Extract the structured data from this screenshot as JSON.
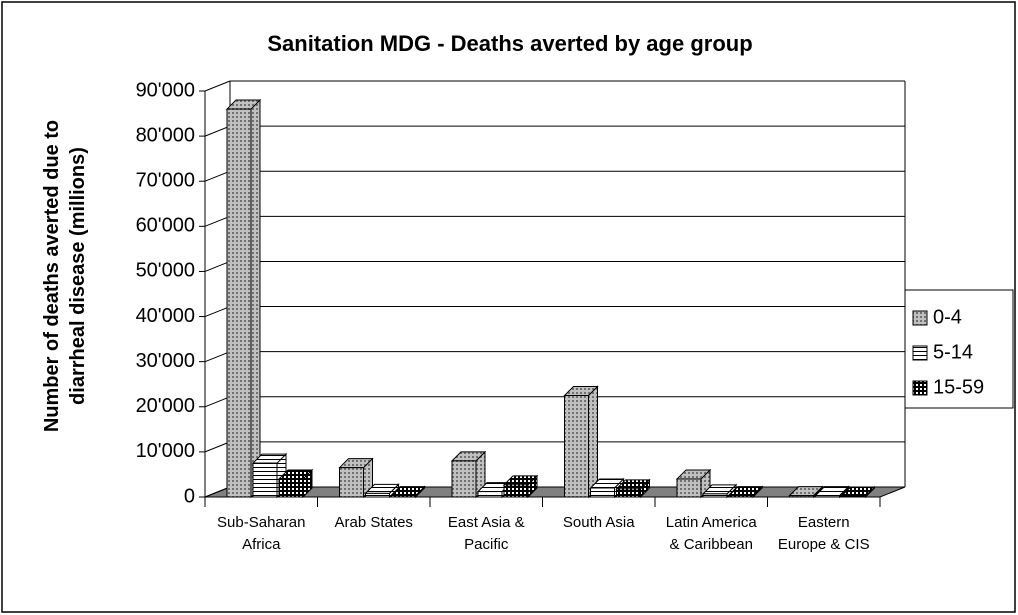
{
  "chart_data": {
    "type": "bar3d",
    "title": "Sanitation MDG - Deaths averted by age group",
    "y_label": "Number of deaths averted due to diarrheal disease (millions)",
    "categories": [
      "Sub-Saharan Africa",
      "Arab States",
      "East Asia & Pacific",
      "South Asia",
      "Latin America & Caribbean",
      "Eastern Europe & CIS"
    ],
    "series": [
      {
        "name": "0-4",
        "color": "#c0c0c0",
        "values": [
          86000,
          6500,
          8000,
          22500,
          4000,
          300
        ]
      },
      {
        "name": "5-14",
        "color": "#ffffff",
        "values": [
          7500,
          800,
          1200,
          2000,
          700,
          300
        ]
      },
      {
        "name": "15-59",
        "color": "#000000",
        "values": [
          4000,
          300,
          2700,
          1800,
          300,
          200
        ]
      }
    ],
    "ylim": [
      0,
      90000
    ],
    "yticks": [
      0,
      {
        "value": 10000,
        "label": "10'000"
      },
      {
        "value": 20000,
        "label": "20'000"
      },
      {
        "value": 30000,
        "label": "30'000"
      },
      {
        "value": 40000,
        "label": "40'000"
      },
      {
        "value": 50000,
        "label": "50'000"
      },
      {
        "value": 60000,
        "label": "60'000"
      },
      {
        "value": 70000,
        "label": "70'000"
      },
      {
        "value": 80000,
        "label": "80'000"
      },
      {
        "value": 90000,
        "label": "90'000"
      }
    ],
    "grid": true,
    "legend": "right"
  }
}
